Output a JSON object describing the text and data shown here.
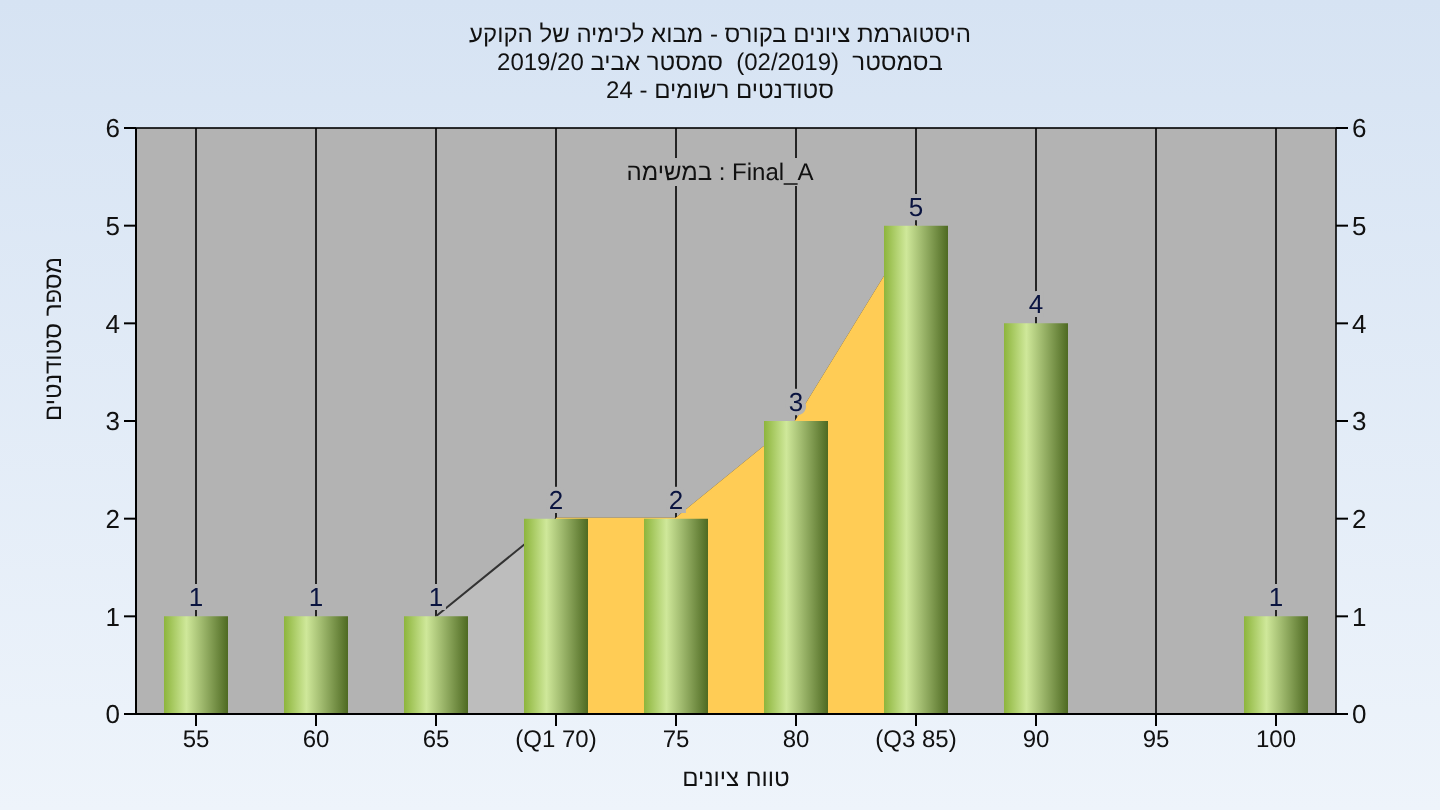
{
  "chart_data": {
    "type": "bar",
    "title": "היסטוגרמת ציונים בקורס - מבוא לכימיה של הקוקע",
    "subtitle": "בסמסטר  (02/2019)  סמסטר אביב 2019/20\nסטודנטים רשומים - 24",
    "xlabel": "טווח ציונים",
    "ylabel": "מספר סטודנטים",
    "annotations": [
      "במשימה : Final_A"
    ],
    "categories": [
      "55",
      "60",
      "65",
      "(Q1 70)",
      "75",
      "80",
      "(Q3 85)",
      "90",
      "95",
      "100"
    ],
    "series": [
      {
        "type": "area",
        "color": "#bdbdbd",
        "values": [
          null,
          null,
          1,
          2,
          2,
          3,
          5,
          null,
          null,
          null
        ]
      },
      {
        "type": "area",
        "color": "#ffcc55",
        "values": [
          null,
          null,
          null,
          2,
          2,
          3,
          5,
          null,
          null,
          null
        ]
      },
      {
        "color": "#8db53c",
        "values": [
          1,
          1,
          1,
          2,
          2,
          3,
          5,
          4,
          0,
          1
        ],
        "value_labels": [
          "1",
          "1",
          "1",
          "2",
          "2",
          "3",
          "5",
          "4",
          null,
          "1"
        ]
      }
    ],
    "ylim": [
      0,
      6
    ],
    "yticks": [
      0,
      1,
      2,
      3,
      4,
      5,
      6
    ],
    "y2lim": [
      0,
      6
    ],
    "y2ticks": [
      0,
      1,
      2,
      3,
      4,
      5,
      6
    ],
    "grid": true
  }
}
